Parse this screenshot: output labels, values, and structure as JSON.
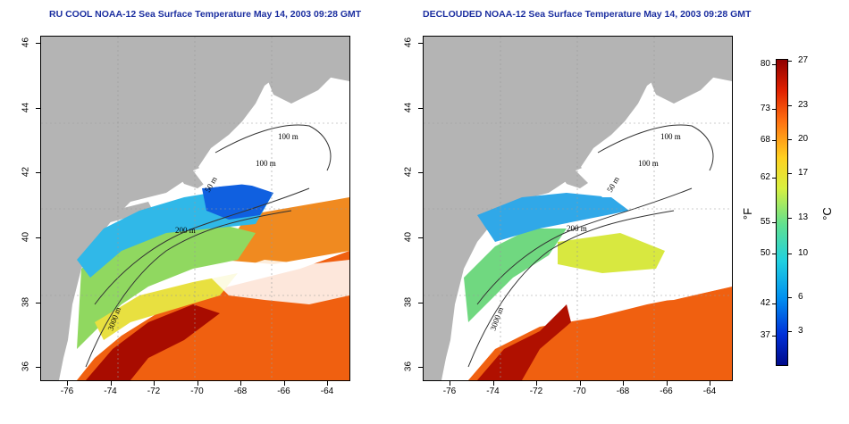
{
  "panels": [
    {
      "title": "RU COOL NOAA-12 Sea Surface Temperature May 14, 2003 09:28 GMT",
      "labels": {
        "m100a": "100 m",
        "m100b": "100 m",
        "m50": "50 m",
        "m200": "200 m",
        "m3000": "3000 m"
      }
    },
    {
      "title": "DECLOUDED NOAA-12 Sea Surface Temperature May 14, 2003 09:28 GMT",
      "labels": {
        "m100a": "100 m",
        "m100b": "100 m",
        "m50": "50 m",
        "m200": "200 m",
        "m3000": "3000 m"
      }
    }
  ],
  "axes": {
    "lat_ticks": [
      "46",
      "44",
      "42",
      "40",
      "38",
      "36"
    ],
    "lon_ticks": [
      "-76",
      "-74",
      "-72",
      "-70",
      "-68",
      "-66",
      "-64"
    ]
  },
  "colorbar": {
    "fahrenheit_ticks": [
      "80",
      "73",
      "68",
      "62",
      "55",
      "50",
      "42",
      "37"
    ],
    "celsius_ticks": [
      "27",
      "23",
      "20",
      "17",
      "13",
      "10",
      "6",
      "3"
    ],
    "fahrenheit_unit": "°F",
    "celsius_unit": "°C"
  },
  "colors": {
    "land": "#b4b4b4",
    "title": "#1c2fa0",
    "cloud": "#ffffff"
  }
}
